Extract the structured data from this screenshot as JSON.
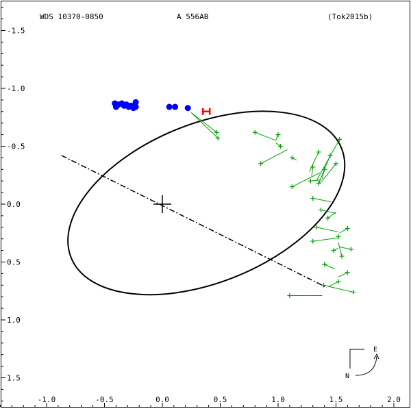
{
  "header": {
    "system": "WDS 10370-0850",
    "pair": "A   556AB",
    "reference": "(Tok2015b)"
  },
  "compass": {
    "north": "N",
    "east": "E"
  },
  "colors": {
    "orbit": "#000000",
    "recent_measures": "#0000ff",
    "interferometric_measures": "#00a000",
    "predicted_position": "#ff0000"
  },
  "chart_data": {
    "type": "scatter",
    "title": "",
    "xlabel": "",
    "ylabel": "",
    "xlim": [
      -1.0,
      2.0
    ],
    "ylim": [
      1.5,
      -1.5
    ],
    "x_ticks": [
      "-1.0",
      "-0.5",
      "0.0",
      "0.5",
      "1.0",
      "1.5",
      "2.0"
    ],
    "y_ticks": [
      "-1.5",
      "-1.0",
      "-0.5",
      "0.0",
      "0.5",
      "1.0",
      "1.5"
    ],
    "orbit": {
      "center": [
        0.38,
        0.01
      ],
      "semi_major": 1.26,
      "semi_minor": 0.685,
      "angle_deg": 157.9
    },
    "origin": [
      0.0,
      0.0
    ],
    "line_of_nodes": [
      [
        -0.87,
        0.42
      ],
      [
        1.42,
        -0.72
      ]
    ],
    "predicted": [
      0.38,
      0.8
    ],
    "series": [
      {
        "marker": "dot",
        "points": [
          [
            -0.41,
            0.87
          ],
          [
            -0.4,
            0.84
          ],
          [
            -0.38,
            0.86
          ],
          [
            -0.35,
            0.87
          ],
          [
            -0.33,
            0.85
          ],
          [
            -0.31,
            0.86
          ],
          [
            -0.29,
            0.84
          ],
          [
            -0.27,
            0.85
          ],
          [
            -0.25,
            0.83
          ],
          [
            -0.23,
            0.88
          ],
          [
            -0.23,
            0.84
          ],
          [
            0.06,
            0.84
          ],
          [
            0.11,
            0.84
          ],
          [
            0.22,
            0.83
          ]
        ]
      },
      {
        "marker": "plus",
        "points": [
          {
            "obs": [
              0.47,
              0.62
            ],
            "calc": [
              0.25,
              0.79
            ]
          },
          {
            "obs": [
              0.48,
              0.57
            ],
            "calc": [
              0.25,
              0.79
            ]
          },
          {
            "obs": [
              0.8,
              0.62
            ],
            "calc": [
              0.98,
              0.55
            ]
          },
          {
            "obs": [
              1.0,
              0.6
            ],
            "calc": [
              0.98,
              0.55
            ]
          },
          {
            "obs": [
              1.02,
              0.5
            ],
            "calc": [
              0.98,
              0.53
            ]
          },
          {
            "obs": [
              0.85,
              0.35
            ],
            "calc": [
              1.08,
              0.47
            ]
          },
          {
            "obs": [
              1.12,
              0.4
            ],
            "calc": [
              1.16,
              0.38
            ]
          },
          {
            "obs": [
              1.35,
              0.45
            ],
            "calc": [
              1.27,
              0.28
            ]
          },
          {
            "obs": [
              1.3,
              0.32
            ],
            "calc": [
              1.29,
              0.24
            ]
          },
          {
            "obs": [
              1.53,
              0.56
            ],
            "calc": [
              1.33,
              0.2
            ]
          },
          {
            "obs": [
              1.45,
              0.42
            ],
            "calc": [
              1.35,
              0.18
            ]
          },
          {
            "obs": [
              1.12,
              0.15
            ],
            "calc": [
              1.36,
              0.27
            ]
          },
          {
            "obs": [
              1.4,
              0.3
            ],
            "calc": [
              1.38,
              0.22
            ]
          },
          {
            "obs": [
              1.28,
              0.2
            ],
            "calc": [
              1.37,
              0.21
            ]
          },
          {
            "obs": [
              1.5,
              0.35
            ],
            "calc": [
              1.38,
              0.2
            ]
          },
          {
            "obs": [
              1.35,
              0.18
            ],
            "calc": [
              1.38,
              0.2
            ]
          },
          {
            "obs": [
              1.3,
              0.05
            ],
            "calc": [
              1.46,
              0.02
            ]
          },
          {
            "obs": [
              1.37,
              -0.05
            ],
            "calc": [
              1.5,
              -0.08
            ]
          },
          {
            "obs": [
              1.43,
              -0.12
            ],
            "calc": [
              1.5,
              -0.07
            ]
          },
          {
            "obs": [
              1.33,
              -0.2
            ],
            "calc": [
              1.52,
              -0.24
            ]
          },
          {
            "obs": [
              1.3,
              -0.32
            ],
            "calc": [
              1.53,
              -0.29
            ]
          },
          {
            "obs": [
              1.6,
              -0.21
            ],
            "calc": [
              1.53,
              -0.25
            ]
          },
          {
            "obs": [
              1.52,
              -0.28
            ],
            "calc": [
              1.52,
              -0.26
            ]
          },
          {
            "obs": [
              1.55,
              -0.45
            ],
            "calc": [
              1.52,
              -0.33
            ]
          },
          {
            "obs": [
              1.63,
              -0.39
            ],
            "calc": [
              1.53,
              -0.37
            ]
          },
          {
            "obs": [
              1.48,
              -0.4
            ],
            "calc": [
              1.52,
              -0.38
            ]
          },
          {
            "obs": [
              1.4,
              -0.52
            ],
            "calc": [
              1.49,
              -0.56
            ]
          },
          {
            "obs": [
              1.6,
              -0.59
            ],
            "calc": [
              1.52,
              -0.63
            ]
          },
          {
            "obs": [
              1.52,
              -0.67
            ],
            "calc": [
              1.44,
              -0.71
            ]
          },
          {
            "obs": [
              1.39,
              -0.7
            ],
            "calc": [
              1.44,
              -0.71
            ]
          },
          {
            "obs": [
              1.65,
              -0.76
            ],
            "calc": [
              1.43,
              -0.71
            ]
          },
          {
            "obs": [
              1.1,
              -0.79
            ],
            "calc": [
              1.38,
              -0.79
            ]
          }
        ]
      }
    ]
  }
}
